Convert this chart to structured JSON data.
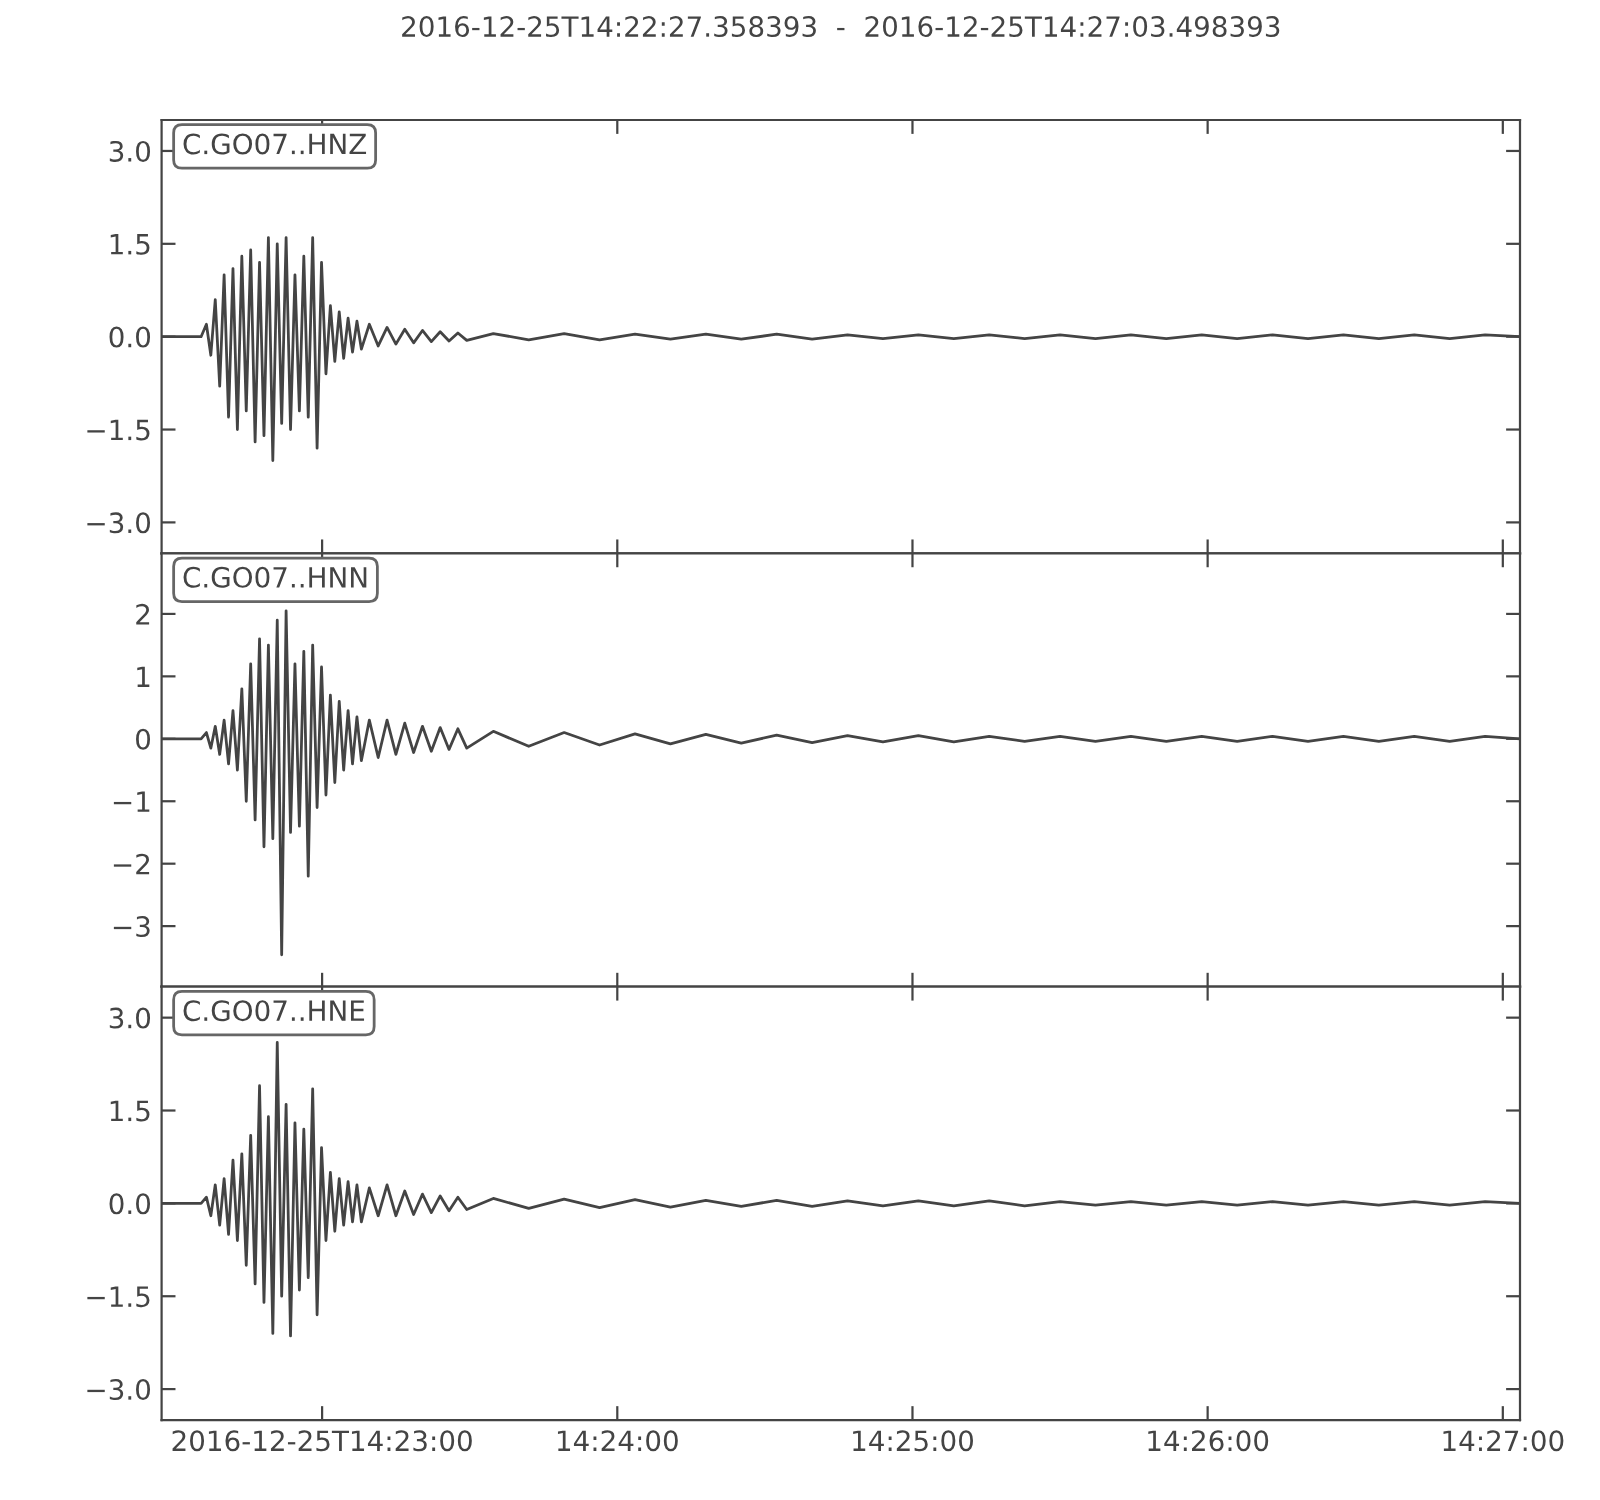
{
  "chart_data": [
    {
      "type": "line",
      "title": "2016-12-25T14:22:27.358393  -  2016-12-25T14:27:03.498393",
      "tick_labels": "y",
      "x": [
        14.37427,
        14.3765,
        14.3768,
        14.37705,
        14.3773,
        14.37755,
        14.3778,
        14.37805,
        14.3783,
        14.37855,
        14.3788,
        14.37905,
        14.3793,
        14.37955,
        14.3798,
        14.38005,
        14.3803,
        14.38055,
        14.3808,
        14.38105,
        14.3813,
        14.38155,
        14.3818,
        14.38205,
        14.3823,
        14.38255,
        14.3828,
        14.38305,
        14.3833,
        14.38355,
        14.3838,
        14.38405,
        14.3843,
        14.38455,
        14.3848,
        14.38505,
        14.3853,
        14.38555,
        14.386,
        14.3865,
        14.387,
        14.3875,
        14.388,
        14.3885,
        14.389,
        14.3895,
        14.39,
        14.3905,
        14.391,
        14.3915,
        14.393,
        14.395,
        14.397,
        14.399,
        14.401,
        14.403,
        14.405,
        14.407,
        14.409,
        14.411,
        14.413,
        14.415,
        14.417,
        14.419,
        14.421,
        14.423,
        14.425,
        14.427,
        14.429,
        14.431,
        14.433,
        14.435,
        14.437,
        14.439,
        14.441,
        14.443,
        14.445,
        14.447,
        14.449,
        14.45097
      ],
      "series": [
        {
          "name": "C.GO07..HNZ",
          "color": "#444444",
          "values": [
            0,
            0,
            0.2,
            -0.3,
            0.6,
            -0.8,
            1.0,
            -1.3,
            1.1,
            -1.5,
            1.3,
            -1.2,
            1.4,
            -1.7,
            1.2,
            -1.6,
            1.6,
            -2.0,
            1.5,
            -1.4,
            1.6,
            -1.5,
            1.0,
            -1.2,
            1.3,
            -1.3,
            1.6,
            -1.8,
            1.2,
            -0.6,
            0.5,
            -0.4,
            0.4,
            -0.35,
            0.3,
            -0.25,
            0.25,
            -0.2,
            0.2,
            -0.15,
            0.15,
            -0.12,
            0.12,
            -0.1,
            0.1,
            -0.08,
            0.08,
            -0.07,
            0.06,
            -0.06,
            0.05,
            -0.05,
            0.05,
            -0.05,
            0.04,
            -0.04,
            0.04,
            -0.04,
            0.04,
            -0.04,
            0.03,
            -0.03,
            0.03,
            -0.03,
            0.03,
            -0.03,
            0.03,
            -0.03,
            0.03,
            -0.03,
            0.03,
            -0.03,
            0.03,
            -0.03,
            0.03,
            -0.03,
            0.03,
            -0.03,
            0.03,
            0
          ]
        }
      ],
      "xlim": [
        14.37427,
        14.45097
      ],
      "xticks": [
        {
          "value": 14.383333,
          "label": null
        },
        {
          "value": 14.4,
          "label": null
        },
        {
          "value": 14.416667,
          "label": null
        },
        {
          "value": 14.433333,
          "label": null
        },
        {
          "value": 14.45,
          "label": null
        }
      ],
      "ylim": [
        -3.5,
        3.5
      ],
      "yticks": [
        {
          "value": -3.0,
          "label": "−3.0"
        },
        {
          "value": -1.5,
          "label": "−1.5"
        },
        {
          "value": 0.0,
          "label": "0.0"
        },
        {
          "value": 1.5,
          "label": "1.5"
        },
        {
          "value": 3.0,
          "label": "3.0"
        }
      ]
    },
    {
      "type": "line",
      "tick_labels": "y",
      "x": [
        14.37427,
        14.3765,
        14.3768,
        14.37705,
        14.3773,
        14.37755,
        14.3778,
        14.37805,
        14.3783,
        14.37855,
        14.3788,
        14.37905,
        14.3793,
        14.37955,
        14.3798,
        14.38005,
        14.3803,
        14.38055,
        14.3808,
        14.38105,
        14.3813,
        14.38155,
        14.3818,
        14.38205,
        14.3823,
        14.38255,
        14.3828,
        14.38305,
        14.3833,
        14.38355,
        14.3838,
        14.38405,
        14.3843,
        14.38455,
        14.3848,
        14.38505,
        14.3853,
        14.38555,
        14.386,
        14.3865,
        14.387,
        14.3875,
        14.388,
        14.3885,
        14.389,
        14.3895,
        14.39,
        14.3905,
        14.391,
        14.3915,
        14.393,
        14.395,
        14.397,
        14.399,
        14.401,
        14.403,
        14.405,
        14.407,
        14.409,
        14.411,
        14.413,
        14.415,
        14.417,
        14.419,
        14.421,
        14.423,
        14.425,
        14.427,
        14.429,
        14.431,
        14.433,
        14.435,
        14.437,
        14.439,
        14.441,
        14.443,
        14.445,
        14.447,
        14.449,
        14.45097
      ],
      "series": [
        {
          "name": "C.GO07..HNN",
          "color": "#444444",
          "values": [
            0,
            0,
            0.1,
            -0.15,
            0.2,
            -0.25,
            0.3,
            -0.4,
            0.45,
            -0.5,
            0.8,
            -1.0,
            1.2,
            -1.3,
            1.6,
            -1.73,
            1.5,
            -1.6,
            1.9,
            -3.46,
            2.05,
            -1.5,
            1.2,
            -1.4,
            1.4,
            -2.2,
            1.5,
            -1.1,
            1.15,
            -0.9,
            0.7,
            -0.7,
            0.6,
            -0.5,
            0.45,
            -0.4,
            0.35,
            -0.35,
            0.3,
            -0.3,
            0.3,
            -0.25,
            0.25,
            -0.22,
            0.2,
            -0.2,
            0.18,
            -0.17,
            0.16,
            -0.15,
            0.12,
            -0.12,
            0.1,
            -0.1,
            0.08,
            -0.08,
            0.07,
            -0.07,
            0.06,
            -0.06,
            0.05,
            -0.05,
            0.05,
            -0.05,
            0.04,
            -0.04,
            0.04,
            -0.04,
            0.04,
            -0.04,
            0.04,
            -0.04,
            0.04,
            -0.04,
            0.04,
            -0.04,
            0.04,
            -0.04,
            0.04,
            0
          ]
        }
      ],
      "xlim": [
        14.37427,
        14.45097
      ],
      "xticks": [
        {
          "value": 14.383333,
          "label": null
        },
        {
          "value": 14.4,
          "label": null
        },
        {
          "value": 14.416667,
          "label": null
        },
        {
          "value": 14.433333,
          "label": null
        },
        {
          "value": 14.45,
          "label": null
        }
      ],
      "ylim": [
        -3.97,
        2.97
      ],
      "yticks": [
        {
          "value": -3,
          "label": "−3"
        },
        {
          "value": -2,
          "label": "−2"
        },
        {
          "value": -1,
          "label": "−1"
        },
        0,
        1,
        2
      ]
    },
    {
      "type": "line",
      "x": [
        14.37427,
        14.3765,
        14.3768,
        14.37705,
        14.3773,
        14.37755,
        14.3778,
        14.37805,
        14.3783,
        14.37855,
        14.3788,
        14.37905,
        14.3793,
        14.37955,
        14.3798,
        14.38005,
        14.3803,
        14.38055,
        14.3808,
        14.38105,
        14.3813,
        14.38155,
        14.3818,
        14.38205,
        14.3823,
        14.38255,
        14.3828,
        14.38305,
        14.3833,
        14.38355,
        14.3838,
        14.38405,
        14.3843,
        14.38455,
        14.3848,
        14.38505,
        14.3853,
        14.38555,
        14.386,
        14.3865,
        14.387,
        14.3875,
        14.388,
        14.3885,
        14.389,
        14.3895,
        14.39,
        14.3905,
        14.391,
        14.3915,
        14.393,
        14.395,
        14.397,
        14.399,
        14.401,
        14.403,
        14.405,
        14.407,
        14.409,
        14.411,
        14.413,
        14.415,
        14.417,
        14.419,
        14.421,
        14.423,
        14.425,
        14.427,
        14.429,
        14.431,
        14.433,
        14.435,
        14.437,
        14.439,
        14.441,
        14.443,
        14.445,
        14.447,
        14.449,
        14.45097
      ],
      "series": [
        {
          "name": "C.GO07..HNE",
          "color": "#444444",
          "values": [
            0,
            0,
            0.1,
            -0.2,
            0.3,
            -0.35,
            0.4,
            -0.5,
            0.7,
            -0.6,
            0.8,
            -1.0,
            1.1,
            -1.3,
            1.9,
            -1.6,
            1.4,
            -2.1,
            2.6,
            -1.5,
            1.6,
            -2.14,
            1.3,
            -1.4,
            1.2,
            -1.2,
            1.85,
            -1.8,
            0.9,
            -0.6,
            0.5,
            -0.45,
            0.4,
            -0.35,
            0.35,
            -0.3,
            0.3,
            -0.3,
            0.25,
            -0.2,
            0.3,
            -0.2,
            0.2,
            -0.18,
            0.15,
            -0.15,
            0.12,
            -0.12,
            0.1,
            -0.1,
            0.08,
            -0.08,
            0.07,
            -0.07,
            0.06,
            -0.06,
            0.05,
            -0.05,
            0.05,
            -0.05,
            0.04,
            -0.04,
            0.04,
            -0.04,
            0.04,
            -0.04,
            0.03,
            -0.03,
            0.03,
            -0.03,
            0.03,
            -0.03,
            0.03,
            -0.03,
            0.03,
            -0.03,
            0.03,
            -0.03,
            0.03,
            0
          ]
        }
      ],
      "xlim": [
        14.37427,
        14.45097
      ],
      "xticks": [
        {
          "value": 14.383333,
          "label": "2016-12-25T14:23:00"
        },
        {
          "value": 14.4,
          "label": "14:24:00"
        },
        {
          "value": 14.416667,
          "label": "14:25:00"
        },
        {
          "value": 14.433333,
          "label": "14:26:00"
        },
        {
          "value": 14.45,
          "label": "14:27:00"
        }
      ],
      "ylim": [
        -3.5,
        3.5
      ],
      "yticks": [
        {
          "value": -3.0,
          "label": "−3.0"
        },
        {
          "value": -1.5,
          "label": "−1.5"
        },
        {
          "value": 0.0,
          "label": "0.0"
        },
        {
          "value": 1.5,
          "label": "1.5"
        },
        {
          "value": 3.0,
          "label": "3.0"
        }
      ]
    }
  ]
}
